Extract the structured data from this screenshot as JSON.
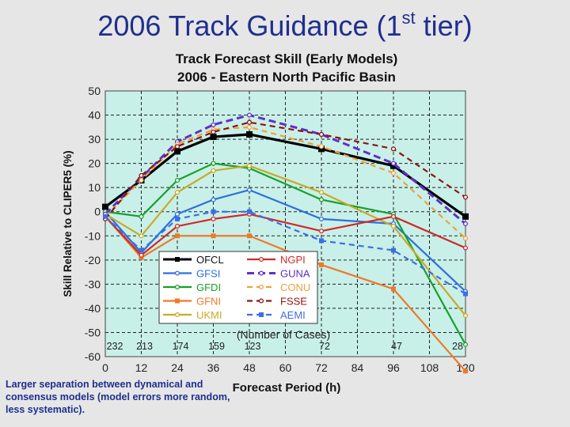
{
  "slide": {
    "title_main": "2006 Track Guidance (1",
    "title_sup": "st",
    "title_end": " tier)",
    "note": "Larger separation between dynamical and consensus models (model errors more random, less systematic)."
  },
  "colors": {
    "plot_bg": "#c8f0e8",
    "title": "#1f2f8f"
  },
  "chart_data": {
    "type": "line",
    "title": "Track Forecast Skill (Early Models)",
    "subtitle": "2006 - Eastern North Pacific Basin",
    "xlabel": "Forecast Period (h)",
    "ylabel": "Skill Relative to CLIPER5 (%)",
    "xlim": [
      0,
      120
    ],
    "ylim": [
      -60,
      50
    ],
    "x_ticks": [
      0,
      12,
      24,
      36,
      48,
      60,
      72,
      84,
      96,
      108,
      120
    ],
    "y_ticks": [
      50,
      40,
      30,
      20,
      10,
      0,
      -10,
      -20,
      -30,
      -40,
      -50,
      -60
    ],
    "grid": true,
    "cases_label": "(Number of Cases)",
    "cases": [
      {
        "x": 0,
        "n": "232"
      },
      {
        "x": 12,
        "n": "213"
      },
      {
        "x": 24,
        "n": "174"
      },
      {
        "x": 36,
        "n": "159"
      },
      {
        "x": 48,
        "n": "123"
      },
      {
        "x": 72,
        "n": "72"
      },
      {
        "x": 96,
        "n": "47"
      },
      {
        "x": 120,
        "n": "28"
      }
    ],
    "x": [
      0,
      12,
      24,
      36,
      48,
      72,
      96,
      120
    ],
    "series": [
      {
        "name": "OFCL",
        "color": "#000000",
        "width": 3.2,
        "dash": "",
        "marker": "square",
        "values": [
          2,
          13,
          25,
          31,
          32,
          26,
          19,
          -2
        ]
      },
      {
        "name": "GFSI",
        "color": "#2f6ee0",
        "width": 2.2,
        "dash": "",
        "marker": "circle",
        "values": [
          0,
          -17,
          -1,
          5,
          9,
          -3,
          -5,
          -33
        ]
      },
      {
        "name": "GFDI",
        "color": "#17a02c",
        "width": 2.2,
        "dash": "",
        "marker": "circle",
        "values": [
          0,
          -2,
          13,
          20,
          18,
          5,
          -1,
          -55
        ]
      },
      {
        "name": "GFNI",
        "color": "#f07828",
        "width": 2.2,
        "dash": "",
        "marker": "square",
        "values": [
          -2,
          -19,
          -10,
          -10,
          -10,
          -22,
          -32,
          -66
        ]
      },
      {
        "name": "UKMI",
        "color": "#c8aa28",
        "width": 2.2,
        "dash": "",
        "marker": "circle",
        "values": [
          -1,
          -10,
          8,
          17,
          19,
          8,
          -6,
          -43
        ]
      },
      {
        "name": "NGPI",
        "color": "#d22828",
        "width": 2.2,
        "dash": "",
        "marker": "circle",
        "values": [
          -2,
          -18,
          -6,
          -3,
          -1,
          -8,
          -2,
          -15
        ]
      },
      {
        "name": "GUNA",
        "color": "#6030c8",
        "width": 3,
        "dash": "9,5",
        "marker": "circle",
        "values": [
          -1,
          14,
          29,
          36,
          40,
          32,
          20,
          -5
        ]
      },
      {
        "name": "CONU",
        "color": "#f0a03c",
        "width": 2.2,
        "dash": "7,5",
        "marker": "circle",
        "values": [
          -2,
          13,
          28,
          34,
          35,
          27,
          16,
          -11
        ]
      },
      {
        "name": "FSSE",
        "color": "#8c1414",
        "width": 2.2,
        "dash": "7,5",
        "marker": "circle",
        "values": [
          -3,
          15,
          27,
          33,
          37,
          32,
          26,
          6
        ]
      },
      {
        "name": "AEMI",
        "color": "#3c6ee6",
        "width": 2.2,
        "dash": "7,5",
        "marker": "square",
        "values": [
          -2,
          -16,
          -3,
          0,
          0,
          -12,
          -16,
          -34
        ]
      }
    ]
  }
}
